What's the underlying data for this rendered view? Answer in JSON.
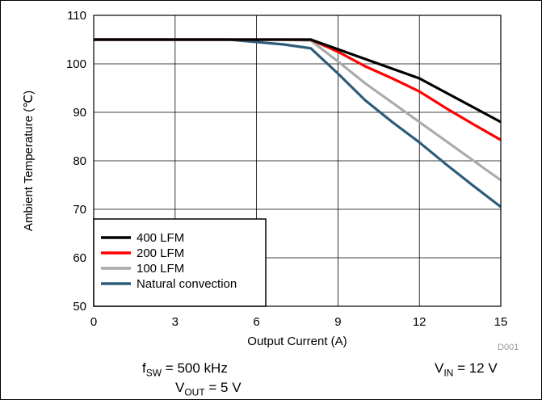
{
  "chart_data": {
    "type": "line",
    "xlabel": "Output Current (A)",
    "ylabel": "Ambient Temperature (℃)",
    "xlim": [
      0,
      15
    ],
    "ylim": [
      50,
      110
    ],
    "xticks": [
      0,
      3,
      6,
      9,
      12,
      15
    ],
    "yticks": [
      50,
      60,
      70,
      80,
      90,
      100,
      110
    ],
    "grid": true,
    "legend_position": "bottom-left",
    "series": [
      {
        "name": "400 LFM",
        "color": "#000000",
        "x": [
          0,
          2,
          4,
          6,
          8,
          9,
          10,
          11,
          12,
          13,
          14,
          15
        ],
        "y": [
          105,
          105,
          105,
          105,
          105,
          103,
          101,
          99,
          97,
          94,
          91,
          88
        ]
      },
      {
        "name": "200 LFM",
        "color": "#ff0000",
        "x": [
          0,
          2,
          4,
          6,
          8,
          9,
          10,
          11,
          12,
          13,
          14,
          15
        ],
        "y": [
          105,
          105,
          105,
          105,
          105,
          102.5,
          99.5,
          97,
          94.3,
          90.8,
          87.5,
          84.3
        ]
      },
      {
        "name": "100 LFM",
        "color": "#aaaaaa",
        "x": [
          0,
          2,
          4,
          6,
          7,
          8,
          9,
          10,
          11,
          12,
          13,
          14,
          15
        ],
        "y": [
          105,
          105,
          105,
          105,
          105,
          104.8,
          100.5,
          96,
          92,
          88,
          84,
          80,
          76
        ]
      },
      {
        "name": "Natural convection",
        "color": "#2d5c7a",
        "x": [
          0,
          2,
          4,
          5,
          6,
          7,
          8,
          9,
          10,
          11,
          12,
          13,
          14,
          15
        ],
        "y": [
          105,
          105,
          105,
          105,
          104.5,
          104,
          103.2,
          98,
          92.5,
          88,
          83.8,
          79.2,
          74.8,
          70.5
        ]
      }
    ]
  },
  "notes": {
    "fsw_main": "f",
    "fsw_sub": "SW",
    "fsw_rest": " = 500 kHz",
    "vin_main": "V",
    "vin_sub": "IN",
    "vin_rest": " = 12 V",
    "vout_main": "V",
    "vout_sub": "OUT",
    "vout_rest": " = 5 V",
    "code": "D001"
  }
}
